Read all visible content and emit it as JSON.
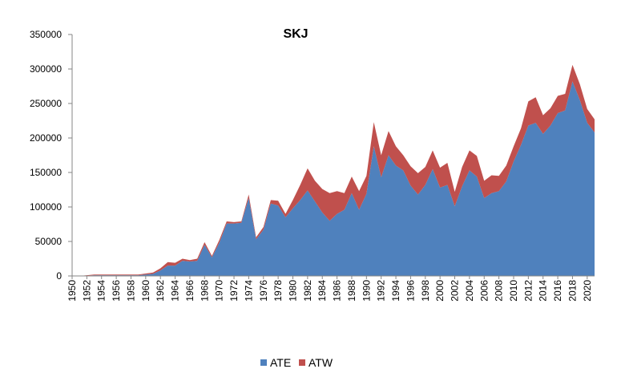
{
  "chart_data": {
    "type": "area",
    "stacked": true,
    "title": "SKJ",
    "xlabel": "",
    "ylabel": "",
    "ylim": [
      0,
      350000
    ],
    "yticks": [
      0,
      50000,
      100000,
      150000,
      200000,
      250000,
      300000,
      350000
    ],
    "x": [
      1950,
      1951,
      1952,
      1953,
      1954,
      1955,
      1956,
      1957,
      1958,
      1959,
      1960,
      1961,
      1962,
      1963,
      1964,
      1965,
      1966,
      1967,
      1968,
      1969,
      1970,
      1971,
      1972,
      1973,
      1974,
      1975,
      1976,
      1977,
      1978,
      1979,
      1980,
      1981,
      1982,
      1983,
      1984,
      1985,
      1986,
      1987,
      1988,
      1989,
      1990,
      1991,
      1992,
      1993,
      1994,
      1995,
      1996,
      1997,
      1998,
      1999,
      2000,
      2001,
      2002,
      2003,
      2004,
      2005,
      2006,
      2007,
      2008,
      2009,
      2010,
      2011,
      2012,
      2013,
      2014,
      2015,
      2016,
      2017,
      2018,
      2019,
      2020,
      2021
    ],
    "xtick_labels": [
      "1950",
      "1952",
      "1954",
      "1956",
      "1958",
      "1960",
      "1962",
      "1964",
      "1966",
      "1968",
      "1970",
      "1972",
      "1974",
      "1976",
      "1978",
      "1980",
      "1982",
      "1984",
      "1986",
      "1988",
      "1990",
      "1992",
      "1994",
      "1996",
      "1998",
      "2000",
      "2002",
      "2004",
      "2006",
      "2008",
      "2010",
      "2012",
      "2014",
      "2016",
      "2018",
      "2020"
    ],
    "series": [
      {
        "name": "ATE",
        "color": "#4f81bd",
        "values": [
          0,
          0,
          500,
          1000,
          1000,
          1000,
          1000,
          1000,
          1000,
          1000,
          2000,
          3000,
          8000,
          15000,
          15000,
          22000,
          21000,
          22000,
          45000,
          27000,
          48000,
          76000,
          76000,
          77000,
          113000,
          53000,
          67000,
          105000,
          102000,
          85000,
          98000,
          110000,
          124000,
          108000,
          92000,
          80000,
          90000,
          96000,
          120000,
          96000,
          119000,
          188000,
          143000,
          175000,
          160000,
          153000,
          131000,
          118000,
          132000,
          155000,
          128000,
          132000,
          101000,
          130000,
          153000,
          144000,
          113000,
          120000,
          123000,
          137000,
          166000,
          190000,
          218000,
          222000,
          206000,
          218000,
          236000,
          240000,
          282000,
          255000,
          222000,
          208000
        ]
      },
      {
        "name": "ATW",
        "color": "#c0504d",
        "values": [
          0,
          0,
          500,
          1000,
          1000,
          1000,
          1000,
          1000,
          1000,
          1000,
          1500,
          2000,
          3000,
          5000,
          4000,
          3000,
          2000,
          3000,
          4000,
          2000,
          4000,
          3000,
          2000,
          2000,
          5000,
          3000,
          4000,
          5000,
          7000,
          5000,
          12000,
          22000,
          32000,
          30000,
          34000,
          40000,
          33000,
          24000,
          24000,
          27000,
          26000,
          35000,
          32000,
          35000,
          28000,
          22000,
          28000,
          31000,
          26000,
          27000,
          29000,
          32000,
          21000,
          28000,
          29000,
          30000,
          25000,
          26000,
          22000,
          23000,
          22000,
          24000,
          35000,
          37000,
          27000,
          25000,
          25000,
          24000,
          24000,
          23000,
          20000,
          19000
        ]
      }
    ],
    "legend": {
      "position": "bottom",
      "entries": [
        "ATE",
        "ATW"
      ]
    },
    "grid": false
  }
}
